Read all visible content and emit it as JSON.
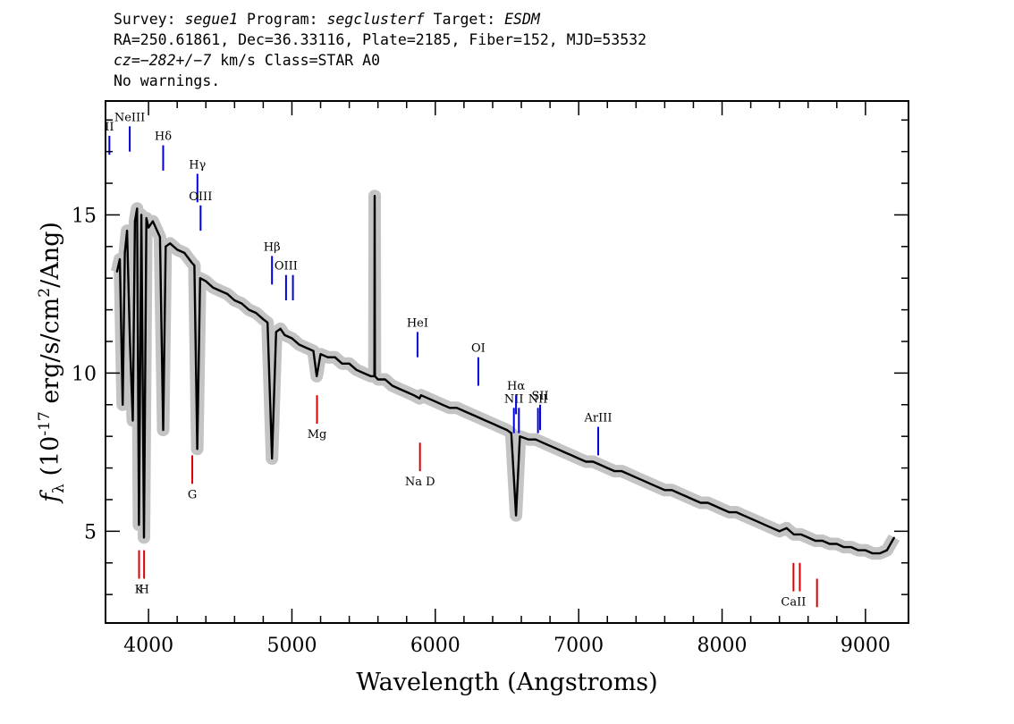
{
  "header": {
    "line1": {
      "survey_label": "Survey: ",
      "survey": "segue1",
      "program_label": " Program: ",
      "program": "segclusterf",
      "target_label": " Target: ",
      "target": "ESDM"
    },
    "line2": "RA=250.61861, Dec=36.33116, Plate=2185, Fiber=152, MJD=53532",
    "line3": {
      "cz_label": "cz=",
      "cz_value": "−282+/−7",
      "rest": " km/s Class=STAR A0"
    },
    "line4": "No warnings."
  },
  "chart_data": {
    "type": "line",
    "xlabel": "Wavelength (Angstroms)",
    "ylabel": "f_λ (10^-17 erg/s/cm^2/Ang)",
    "xlim": [
      3700,
      9300
    ],
    "ylim": [
      2.1,
      18.6
    ],
    "xticks": [
      4000,
      5000,
      6000,
      7000,
      8000,
      9000
    ],
    "yticks": [
      5,
      10,
      15
    ],
    "series": [
      {
        "role": "flux",
        "color": "#000000",
        "points": [
          [
            3780,
            13.2
          ],
          [
            3800,
            13.6
          ],
          [
            3820,
            9.0
          ],
          [
            3835,
            13.8
          ],
          [
            3850,
            14.5
          ],
          [
            3870,
            11.0
          ],
          [
            3890,
            8.5
          ],
          [
            3905,
            14.8
          ],
          [
            3920,
            15.2
          ],
          [
            3933,
            5.2
          ],
          [
            3950,
            15.0
          ],
          [
            3968,
            4.8
          ],
          [
            3985,
            14.9
          ],
          [
            4000,
            14.6
          ],
          [
            4030,
            14.8
          ],
          [
            4060,
            14.5
          ],
          [
            4080,
            14.3
          ],
          [
            4102,
            8.2
          ],
          [
            4120,
            14.0
          ],
          [
            4150,
            14.1
          ],
          [
            4200,
            13.9
          ],
          [
            4250,
            13.8
          ],
          [
            4300,
            13.5
          ],
          [
            4320,
            13.4
          ],
          [
            4340,
            7.6
          ],
          [
            4360,
            13.0
          ],
          [
            4400,
            12.9
          ],
          [
            4450,
            12.7
          ],
          [
            4500,
            12.6
          ],
          [
            4550,
            12.5
          ],
          [
            4600,
            12.3
          ],
          [
            4650,
            12.2
          ],
          [
            4700,
            12.0
          ],
          [
            4750,
            11.9
          ],
          [
            4800,
            11.7
          ],
          [
            4830,
            11.6
          ],
          [
            4861,
            7.3
          ],
          [
            4890,
            11.3
          ],
          [
            4920,
            11.4
          ],
          [
            4950,
            11.2
          ],
          [
            5000,
            11.1
          ],
          [
            5050,
            10.9
          ],
          [
            5100,
            10.8
          ],
          [
            5150,
            10.7
          ],
          [
            5173,
            9.9
          ],
          [
            5200,
            10.6
          ],
          [
            5250,
            10.5
          ],
          [
            5300,
            10.5
          ],
          [
            5350,
            10.3
          ],
          [
            5400,
            10.3
          ],
          [
            5450,
            10.1
          ],
          [
            5500,
            10.0
          ],
          [
            5550,
            9.9
          ],
          [
            5575,
            9.9
          ],
          [
            5577,
            15.6
          ],
          [
            5579,
            9.9
          ],
          [
            5600,
            9.8
          ],
          [
            5650,
            9.8
          ],
          [
            5700,
            9.6
          ],
          [
            5750,
            9.5
          ],
          [
            5800,
            9.4
          ],
          [
            5850,
            9.3
          ],
          [
            5890,
            9.2
          ],
          [
            5900,
            9.3
          ],
          [
            5950,
            9.2
          ],
          [
            6000,
            9.1
          ],
          [
            6050,
            9.0
          ],
          [
            6100,
            8.9
          ],
          [
            6150,
            8.9
          ],
          [
            6200,
            8.8
          ],
          [
            6250,
            8.7
          ],
          [
            6300,
            8.6
          ],
          [
            6350,
            8.5
          ],
          [
            6400,
            8.4
          ],
          [
            6450,
            8.3
          ],
          [
            6500,
            8.2
          ],
          [
            6530,
            8.1
          ],
          [
            6563,
            5.5
          ],
          [
            6590,
            8.0
          ],
          [
            6650,
            7.9
          ],
          [
            6700,
            7.9
          ],
          [
            6750,
            7.8
          ],
          [
            6800,
            7.7
          ],
          [
            6850,
            7.6
          ],
          [
            6900,
            7.5
          ],
          [
            6950,
            7.4
          ],
          [
            7000,
            7.3
          ],
          [
            7050,
            7.2
          ],
          [
            7100,
            7.2
          ],
          [
            7150,
            7.1
          ],
          [
            7200,
            7.0
          ],
          [
            7250,
            6.9
          ],
          [
            7300,
            6.9
          ],
          [
            7350,
            6.8
          ],
          [
            7400,
            6.7
          ],
          [
            7450,
            6.6
          ],
          [
            7500,
            6.5
          ],
          [
            7550,
            6.4
          ],
          [
            7600,
            6.3
          ],
          [
            7650,
            6.3
          ],
          [
            7700,
            6.2
          ],
          [
            7750,
            6.1
          ],
          [
            7800,
            6.0
          ],
          [
            7850,
            5.9
          ],
          [
            7900,
            5.9
          ],
          [
            7950,
            5.8
          ],
          [
            8000,
            5.7
          ],
          [
            8050,
            5.6
          ],
          [
            8100,
            5.6
          ],
          [
            8150,
            5.5
          ],
          [
            8200,
            5.4
          ],
          [
            8250,
            5.3
          ],
          [
            8300,
            5.2
          ],
          [
            8350,
            5.1
          ],
          [
            8400,
            5.0
          ],
          [
            8450,
            5.1
          ],
          [
            8500,
            4.9
          ],
          [
            8550,
            4.9
          ],
          [
            8600,
            4.8
          ],
          [
            8650,
            4.7
          ],
          [
            8700,
            4.7
          ],
          [
            8750,
            4.6
          ],
          [
            8800,
            4.6
          ],
          [
            8850,
            4.5
          ],
          [
            8900,
            4.5
          ],
          [
            8950,
            4.4
          ],
          [
            9000,
            4.4
          ],
          [
            9050,
            4.3
          ],
          [
            9100,
            4.3
          ],
          [
            9150,
            4.4
          ],
          [
            9200,
            4.8
          ]
        ]
      }
    ],
    "lines": [
      {
        "label": "II",
        "wave": 3727,
        "y_low": 16.9,
        "y_high": 17.5,
        "color": "#0000dd"
      },
      {
        "label": "NeIII",
        "wave": 3869,
        "y_low": 17.0,
        "y_high": 17.8,
        "color": "#0000dd"
      },
      {
        "label": "Hδ",
        "wave": 4102,
        "y_low": 16.4,
        "y_high": 17.2,
        "color": "#0000dd"
      },
      {
        "label": "Hγ",
        "wave": 4341,
        "y_low": 15.4,
        "y_high": 16.3,
        "color": "#0000dd"
      },
      {
        "label": "OIII",
        "wave": 4363,
        "y_low": 14.5,
        "y_high": 15.3,
        "color": "#0000dd"
      },
      {
        "label": "Hβ",
        "wave": 4861,
        "y_low": 12.8,
        "y_high": 13.7,
        "color": "#0000dd"
      },
      {
        "label": "OIII",
        "wave": 4959,
        "y_low": 12.3,
        "y_high": 13.1,
        "color": "#0000dd"
      },
      {
        "label": "",
        "wave": 5007,
        "y_low": 12.3,
        "y_high": 13.1,
        "color": "#0000dd"
      },
      {
        "label": "HeI",
        "wave": 5876,
        "y_low": 10.5,
        "y_high": 11.3,
        "color": "#0000dd"
      },
      {
        "label": "OI",
        "wave": 6300,
        "y_low": 9.6,
        "y_high": 10.5,
        "color": "#0000dd"
      },
      {
        "label": "NII",
        "wave": 6548,
        "y_low": 8.1,
        "y_high": 8.9,
        "color": "#0000dd"
      },
      {
        "label": "Hα",
        "wave": 6563,
        "y_low": 8.7,
        "y_high": 9.3,
        "color": "#0000dd"
      },
      {
        "label": "",
        "wave": 6583,
        "y_low": 8.1,
        "y_high": 8.9,
        "color": "#0000dd"
      },
      {
        "label": "NII",
        "wave": 6716,
        "y_low": 8.1,
        "y_high": 8.9,
        "color": "#0000dd"
      },
      {
        "label": "SII",
        "wave": 6731,
        "y_low": 8.2,
        "y_high": 9.0,
        "color": "#0000dd"
      },
      {
        "label": "ArIII",
        "wave": 7136,
        "y_low": 7.4,
        "y_high": 8.3,
        "color": "#0000dd"
      },
      {
        "label": "Mg",
        "wave": 5175,
        "y_low": 8.4,
        "y_high": 9.3,
        "color": "#dd0000"
      },
      {
        "label": "G",
        "wave": 4305,
        "y_low": 6.5,
        "y_high": 7.4,
        "color": "#dd0000"
      },
      {
        "label": "Na D",
        "wave": 5893,
        "y_low": 6.9,
        "y_high": 7.8,
        "color": "#dd0000"
      },
      {
        "label": "K",
        "wave": 3934,
        "y_low": 3.5,
        "y_high": 4.4,
        "color": "#dd0000"
      },
      {
        "label": "H",
        "wave": 3969,
        "y_low": 3.5,
        "y_high": 4.4,
        "color": "#dd0000"
      },
      {
        "label": "CaII",
        "wave": 8498,
        "y_low": 3.1,
        "y_high": 4.0,
        "color": "#dd0000"
      },
      {
        "label": "",
        "wave": 8542,
        "y_low": 3.1,
        "y_high": 4.0,
        "color": "#dd0000"
      },
      {
        "label": "",
        "wave": 8662,
        "y_low": 2.6,
        "y_high": 3.5,
        "color": "#dd0000"
      }
    ]
  }
}
